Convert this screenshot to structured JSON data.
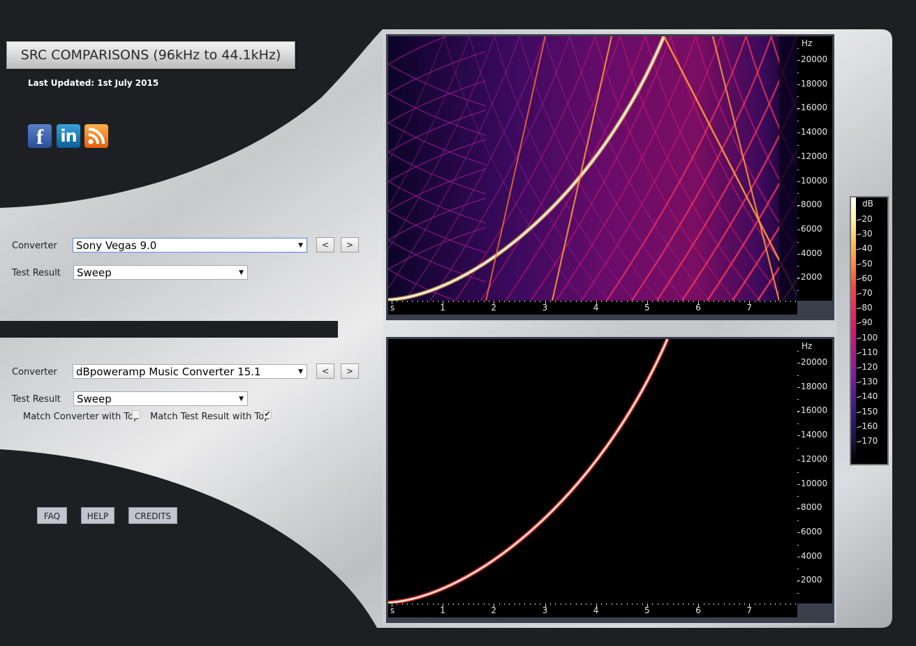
{
  "title": "SRC COMPARISONS (96kHz to 44.1kHz)",
  "last_updated": "Last Updated: 1st July 2015",
  "social": [
    {
      "icon": "facebook-icon",
      "glyph": "f"
    },
    {
      "icon": "linkedin-icon",
      "glyph": "in"
    },
    {
      "icon": "rss-icon",
      "glyph": ""
    }
  ],
  "top": {
    "converter_label": "Converter",
    "converter_value": "Sony Vegas 9.0",
    "test_result_label": "Test Result",
    "test_result_value": "Sweep",
    "prev_label": "<",
    "next_label": ">"
  },
  "bottom": {
    "converter_label": "Converter",
    "converter_value": "dBpoweramp Music Converter 15.1",
    "test_result_label": "Test Result",
    "test_result_value": "Sweep",
    "prev_label": "<",
    "next_label": ">",
    "match_converter_label": "Match Converter with Top",
    "match_converter_checked": false,
    "match_test_label": "Match Test Result with Top",
    "match_test_checked": true,
    "check_glyph": "✔"
  },
  "links": {
    "faq": "FAQ",
    "help": "HELP",
    "credits": "CREDITS"
  },
  "spectrogram": {
    "freq_unit": "Hz",
    "freq_ticks": [
      "20000",
      "18000",
      "16000",
      "14000",
      "12000",
      "10000",
      "8000",
      "6000",
      "4000",
      "2000"
    ],
    "time_ticks": [
      "s",
      "1",
      "2",
      "3",
      "4",
      "5",
      "6",
      "7"
    ]
  },
  "db_scale": {
    "unit": "dB",
    "ticks": [
      "-20",
      "-30",
      "-40",
      "-50",
      "-60",
      "-70",
      "-80",
      "-90",
      "-100",
      "-110",
      "-120",
      "-130",
      "-140",
      "-150",
      "-160",
      "-170"
    ]
  },
  "colors": {
    "background": "#1e1f23",
    "sweep_core": "#fff4c8",
    "alias_bright": "#ff9a3c",
    "alias_mid": "#ff3a5c",
    "alias_dim": "#a0208c",
    "spectrogram_bg_top": "#2a0a52",
    "spectrogram_bg_bottom": "#000000"
  }
}
